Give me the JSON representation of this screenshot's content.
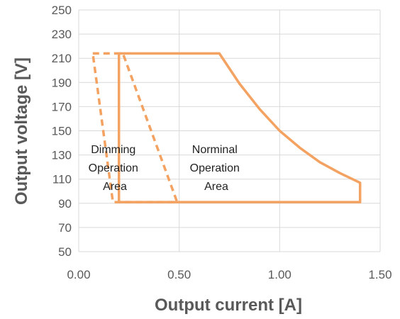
{
  "chart_data": {
    "type": "line",
    "xlabel": "Output current [A]",
    "ylabel": "Output voltage [V]",
    "xlim": [
      0,
      1.5
    ],
    "ylim": [
      50,
      250
    ],
    "x_ticks": [
      "0.00",
      "0.50",
      "1.00",
      "1.50"
    ],
    "y_ticks": [
      "50",
      "70",
      "90",
      "110",
      "130",
      "150",
      "170",
      "190",
      "210",
      "230",
      "250"
    ],
    "grid": true,
    "color": "#f4a261",
    "series": [
      {
        "style": "solid",
        "points": [
          [
            0.2,
            214
          ],
          [
            0.7,
            214
          ],
          [
            0.8,
            189
          ],
          [
            0.9,
            168
          ],
          [
            1.0,
            150
          ],
          [
            1.1,
            136
          ],
          [
            1.2,
            124
          ],
          [
            1.3,
            115
          ],
          [
            1.4,
            107
          ],
          [
            1.4,
            91
          ],
          [
            0.2,
            91
          ],
          [
            0.2,
            214
          ]
        ]
      },
      {
        "style": "dashed",
        "points": [
          [
            0.07,
            214
          ],
          [
            0.22,
            214
          ],
          [
            0.49,
            91
          ],
          [
            0.17,
            91
          ],
          [
            0.07,
            214
          ]
        ]
      }
    ],
    "annotations": [
      {
        "lines": [
          "Dimming",
          "Operation",
          "Area"
        ]
      },
      {
        "lines": [
          "Norminal",
          "Operation",
          "Area"
        ]
      }
    ]
  }
}
